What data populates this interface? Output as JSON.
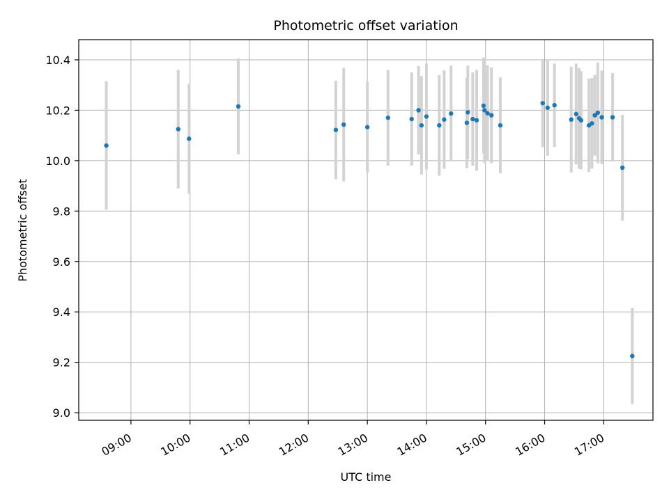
{
  "chart_data": {
    "type": "scatter",
    "title": "Photometric offset variation",
    "xlabel": "UTC time",
    "ylabel": "Photometric offset",
    "xlim": [
      "08:07",
      "17:50"
    ],
    "ylim": [
      8.97,
      10.48
    ],
    "x_ticks": [
      "09:00",
      "10:00",
      "11:00",
      "12:00",
      "13:00",
      "14:00",
      "15:00",
      "16:00",
      "17:00"
    ],
    "y_ticks": [
      9.0,
      9.2,
      9.4,
      9.6,
      9.8,
      10.0,
      10.2,
      10.4
    ],
    "grid": true,
    "colors": {
      "point": "#1f77b4",
      "errorbar": "#d3d3d3",
      "grid": "#b0b0b0"
    },
    "points": [
      {
        "x": "08:35",
        "y": 10.06,
        "yerr": 0.255
      },
      {
        "x": "09:48",
        "y": 10.125,
        "yerr": 0.235
      },
      {
        "x": "09:59",
        "y": 10.087,
        "yerr": 0.218
      },
      {
        "x": "10:49",
        "y": 10.215,
        "yerr": 0.19
      },
      {
        "x": "12:28",
        "y": 10.122,
        "yerr": 0.195
      },
      {
        "x": "12:36",
        "y": 10.143,
        "yerr": 0.225
      },
      {
        "x": "13:00",
        "y": 10.133,
        "yerr": 0.18
      },
      {
        "x": "13:21",
        "y": 10.17,
        "yerr": 0.19
      },
      {
        "x": "13:45",
        "y": 10.165,
        "yerr": 0.185
      },
      {
        "x": "13:52",
        "y": 10.2,
        "yerr": 0.175
      },
      {
        "x": "13:55",
        "y": 10.14,
        "yerr": 0.195
      },
      {
        "x": "14:00",
        "y": 10.175,
        "yerr": 0.21
      },
      {
        "x": "14:13",
        "y": 10.14,
        "yerr": 0.2
      },
      {
        "x": "14:18",
        "y": 10.163,
        "yerr": 0.195
      },
      {
        "x": "14:25",
        "y": 10.187,
        "yerr": 0.19
      },
      {
        "x": "14:41",
        "y": 10.15,
        "yerr": 0.18
      },
      {
        "x": "14:42",
        "y": 10.192,
        "yerr": 0.185
      },
      {
        "x": "14:47",
        "y": 10.165,
        "yerr": 0.185
      },
      {
        "x": "14:51",
        "y": 10.16,
        "yerr": 0.2
      },
      {
        "x": "14:58",
        "y": 10.218,
        "yerr": 0.19
      },
      {
        "x": "14:59",
        "y": 10.2,
        "yerr": 0.21
      },
      {
        "x": "15:02",
        "y": 10.188,
        "yerr": 0.19
      },
      {
        "x": "15:06",
        "y": 10.18,
        "yerr": 0.19
      },
      {
        "x": "15:15",
        "y": 10.14,
        "yerr": 0.19
      },
      {
        "x": "15:58",
        "y": 10.228,
        "yerr": 0.175
      },
      {
        "x": "16:03",
        "y": 10.21,
        "yerr": 0.19
      },
      {
        "x": "16:10",
        "y": 10.22,
        "yerr": 0.165
      },
      {
        "x": "16:27",
        "y": 10.163,
        "yerr": 0.21
      },
      {
        "x": "16:32",
        "y": 10.185,
        "yerr": 0.2
      },
      {
        "x": "16:35",
        "y": 10.168,
        "yerr": 0.2
      },
      {
        "x": "16:37",
        "y": 10.16,
        "yerr": 0.195
      },
      {
        "x": "16:45",
        "y": 10.14,
        "yerr": 0.185
      },
      {
        "x": "16:48",
        "y": 10.148,
        "yerr": 0.18
      },
      {
        "x": "16:51",
        "y": 10.18,
        "yerr": 0.16
      },
      {
        "x": "16:54",
        "y": 10.19,
        "yerr": 0.2
      },
      {
        "x": "16:58",
        "y": 10.172,
        "yerr": 0.185
      },
      {
        "x": "17:09",
        "y": 10.172,
        "yerr": 0.175
      },
      {
        "x": "17:19",
        "y": 9.972,
        "yerr": 0.21
      },
      {
        "x": "17:29",
        "y": 9.225,
        "yerr": 0.19
      }
    ]
  }
}
